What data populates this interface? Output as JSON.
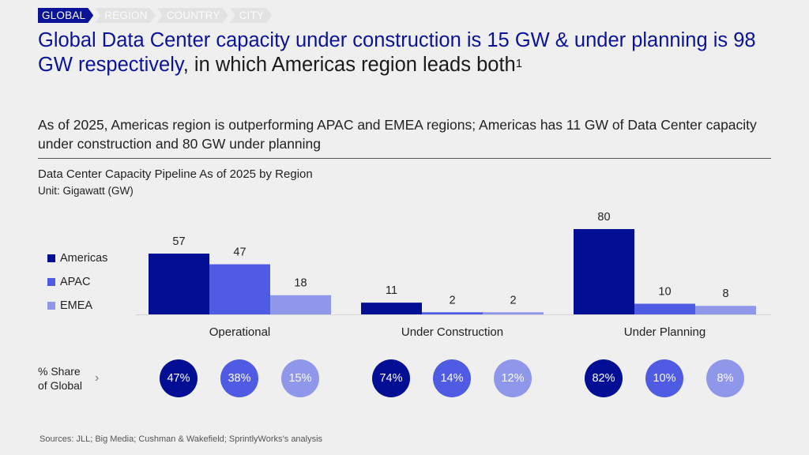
{
  "breadcrumb": {
    "items": [
      {
        "label": "GLOBAL",
        "active": true
      },
      {
        "label": "REGION",
        "active": false
      },
      {
        "label": "COUNTRY",
        "active": false
      },
      {
        "label": "CITY",
        "active": false
      }
    ]
  },
  "headline": {
    "highlight": "Global Data Center capacity under construction is 15 GW & under planning is 98 GW respectively",
    "rest": ", in which Americas region leads both",
    "footnote": "1"
  },
  "subheadline": "As of 2025, Americas region is outperforming APAC and EMEA regions; Americas has 11 GW of Data Center capacity under construction and 80 GW under planning",
  "colors": {
    "americas": "#020f94",
    "apac": "#4f5be3",
    "emea": "#8f97ea",
    "accent": "#0b1496"
  },
  "chart_data": {
    "type": "bar",
    "title": "Data Center Capacity Pipeline As of 2025 by Region",
    "unit": "Unit: Gigawatt (GW)",
    "xlabel": "",
    "ylabel": "",
    "ylim": [
      0,
      80
    ],
    "grid": false,
    "legend_position": "left",
    "categories": [
      "Operational",
      "Under Construction",
      "Under Planning"
    ],
    "series": [
      {
        "name": "Americas",
        "color": "#020f94",
        "values": [
          57,
          11,
          80
        ]
      },
      {
        "name": "APAC",
        "color": "#4f5be3",
        "values": [
          47,
          2,
          10
        ]
      },
      {
        "name": "EMEA",
        "color": "#8f97ea",
        "values": [
          18,
          2,
          8
        ]
      }
    ],
    "share_of_global": {
      "label_line1": "% Share",
      "label_line2": "of Global",
      "values": [
        [
          "47%",
          "38%",
          "15%"
        ],
        [
          "74%",
          "14%",
          "12%"
        ],
        [
          "82%",
          "10%",
          "8%"
        ]
      ]
    }
  },
  "sources": "Sources: JLL; Big Media; Cushman & Wakefield; SprintlyWorks’s analysis"
}
